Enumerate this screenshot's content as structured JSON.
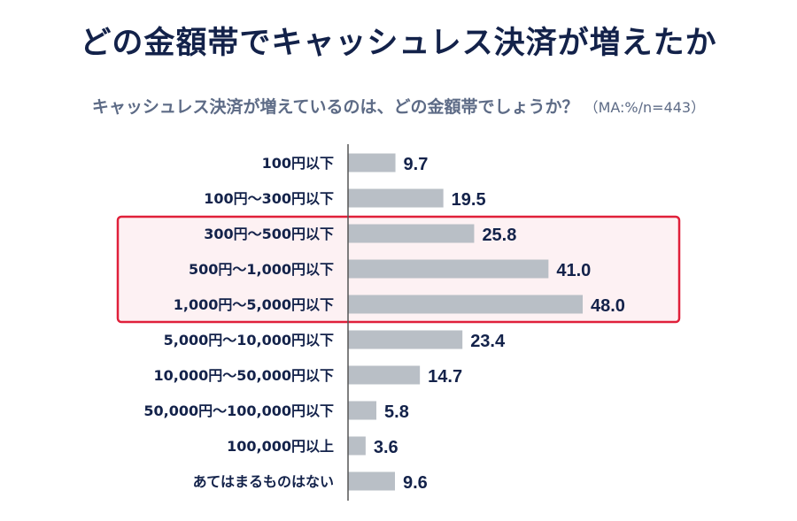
{
  "title": "どの金額帯でキャッシュレス決済が増えたか",
  "subtitle": "キャッシュレス決済が増えているのは、どの金額帯でしょうか？",
  "note": "（MA:%/n=443）",
  "colors": {
    "bar": "#b9bfc6",
    "text": "#13224a",
    "highlight_border": "#e0203a",
    "highlight_fill": "#fdf1f3",
    "axis": "#555555"
  },
  "chart_data": {
    "type": "bar",
    "orientation": "horizontal",
    "categories": [
      "100円以下",
      "100円～300円以下",
      "300円～500円以下",
      "500円～1,000円以下",
      "1,000円～5,000円以下",
      "5,000円～10,000円以下",
      "10,000円～50,000円以下",
      "50,000円～100,000円以下",
      "100,000円以上",
      "あてはまるものはない"
    ],
    "values": [
      9.7,
      19.5,
      25.8,
      41.0,
      48.0,
      23.4,
      14.7,
      5.8,
      3.6,
      9.6
    ],
    "value_labels": [
      "9.7",
      "19.5",
      "25.8",
      "41.0",
      "48.0",
      "23.4",
      "14.7",
      "5.8",
      "3.6",
      "9.6"
    ],
    "highlighted_categories": [
      "300円～500円以下",
      "500円～1,000円以下",
      "1,000円～5,000円以下"
    ],
    "xlim": [
      0,
      50
    ],
    "grid": false
  }
}
